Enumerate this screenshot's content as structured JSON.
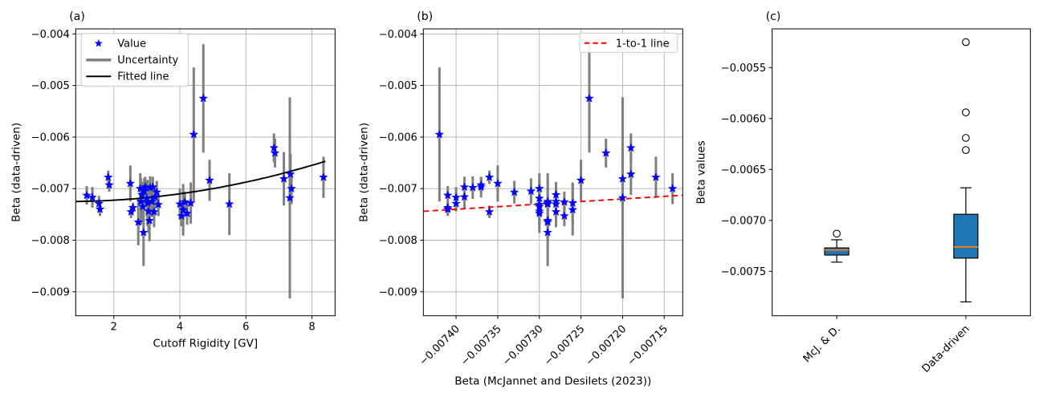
{
  "figure": {
    "background": "#ffffff",
    "panel_titles": [
      "(a)",
      "(b)",
      "(c)"
    ]
  },
  "colors": {
    "marker": "#0000ff",
    "errorbar": "#7f7f7f",
    "fit_line": "#000000",
    "one_to_one": "#ff0000",
    "grid": "#b0b0b0",
    "spine": "#000000",
    "box_fill": "#1f77b4",
    "median": "#ff7f0e",
    "text": "#000000"
  },
  "chart_data": [
    {
      "id": "a",
      "type": "scatter",
      "title": "(a)",
      "xlabel": "Cutoff Rigidity [GV]",
      "ylabel": "Beta (data-driven)",
      "xlim": [
        0.845,
        8.7
      ],
      "ylim": [
        -0.009465,
        -0.003902
      ],
      "xticks": [
        2,
        4,
        6,
        8
      ],
      "xticklabels": [
        "2",
        "4",
        "6",
        "8"
      ],
      "yticks": [
        -0.004,
        -0.005,
        -0.006,
        -0.007,
        -0.008,
        -0.009
      ],
      "yticklabels": [
        "−0.004",
        "−0.005",
        "−0.006",
        "−0.007",
        "−0.008",
        "−0.009"
      ],
      "grid": true,
      "legend": {
        "loc": "upper-left",
        "entries": [
          {
            "label": "Value",
            "swatch": "star",
            "color": "#0000ff"
          },
          {
            "label": "Uncertainty",
            "swatch": "thick-line",
            "color": "#7f7f7f"
          },
          {
            "label": "Fitted line",
            "swatch": "line",
            "color": "#000000"
          }
        ]
      },
      "fit": {
        "kind": "quadratic",
        "a": -0.0072473,
        "b": -1.3806e-05,
        "c": 1.266e-05,
        "x_start": 0.845,
        "x_end": 8.52
      },
      "points": [
        {
          "x": 1.18,
          "y": -0.00713,
          "err": 0.00018
        },
        {
          "x": 1.35,
          "y": -0.00717,
          "err": 0.0002
        },
        {
          "x": 1.55,
          "y": -0.00729,
          "err": 0.00015
        },
        {
          "x": 1.58,
          "y": -0.0074,
          "err": 0.00013
        },
        {
          "x": 1.83,
          "y": -0.00678,
          "err": 0.00013
        },
        {
          "x": 1.86,
          "y": -0.00693,
          "err": 0.00013
        },
        {
          "x": 2.5,
          "y": -0.0069,
          "err": 0.00035
        },
        {
          "x": 2.52,
          "y": -0.00745,
          "err": 0.00012
        },
        {
          "x": 2.58,
          "y": -0.00737,
          "err": 0.0001
        },
        {
          "x": 2.74,
          "y": -0.00765,
          "err": 0.00045
        },
        {
          "x": 2.8,
          "y": -0.007,
          "err": 0.0003
        },
        {
          "x": 2.82,
          "y": -0.00725,
          "err": 0.00045
        },
        {
          "x": 2.85,
          "y": -0.00712,
          "err": 0.00025
        },
        {
          "x": 2.88,
          "y": -0.00735,
          "err": 0.0003
        },
        {
          "x": 2.9,
          "y": -0.00785,
          "err": 0.00065
        },
        {
          "x": 2.92,
          "y": -0.00705,
          "err": 0.00025
        },
        {
          "x": 2.95,
          "y": -0.00697,
          "err": 0.0002
        },
        {
          "x": 3.0,
          "y": -0.00719,
          "err": 0.00035
        },
        {
          "x": 3.02,
          "y": -0.00728,
          "err": 0.00045
        },
        {
          "x": 3.05,
          "y": -0.00744,
          "err": 0.00042
        },
        {
          "x": 3.08,
          "y": -0.00762,
          "err": 0.0004
        },
        {
          "x": 3.1,
          "y": -0.00698,
          "err": 0.00022
        },
        {
          "x": 3.15,
          "y": -0.00725,
          "err": 0.0003
        },
        {
          "x": 3.18,
          "y": -0.00697,
          "err": 0.0002
        },
        {
          "x": 3.22,
          "y": -0.00745,
          "err": 0.0003
        },
        {
          "x": 3.25,
          "y": -0.00716,
          "err": 0.00022
        },
        {
          "x": 3.3,
          "y": -0.00707,
          "err": 0.00022
        },
        {
          "x": 3.35,
          "y": -0.00731,
          "err": 0.00022
        },
        {
          "x": 4.0,
          "y": -0.0073,
          "err": 0.0003
        },
        {
          "x": 4.05,
          "y": -0.00753,
          "err": 0.0002
        },
        {
          "x": 4.1,
          "y": -0.00741,
          "err": 0.0005
        },
        {
          "x": 4.15,
          "y": -0.00726,
          "err": 0.0002
        },
        {
          "x": 4.22,
          "y": -0.00748,
          "err": 0.00022
        },
        {
          "x": 4.33,
          "y": -0.00728,
          "err": 0.0004
        },
        {
          "x": 4.42,
          "y": -0.00595,
          "err": 0.0013
        },
        {
          "x": 4.71,
          "y": -0.00525,
          "err": 0.00105
        },
        {
          "x": 4.9,
          "y": -0.00684,
          "err": 0.0004
        },
        {
          "x": 5.5,
          "y": -0.0073,
          "err": 0.0006
        },
        {
          "x": 6.85,
          "y": -0.00621,
          "err": 0.00028
        },
        {
          "x": 6.88,
          "y": -0.00631,
          "err": 0.00028
        },
        {
          "x": 7.15,
          "y": -0.00681,
          "err": 0.00052
        },
        {
          "x": 7.33,
          "y": -0.00718,
          "err": 0.00195
        },
        {
          "x": 7.35,
          "y": -0.00672,
          "err": 0.0004
        },
        {
          "x": 7.38,
          "y": -0.007,
          "err": 0.0003
        },
        {
          "x": 8.35,
          "y": -0.00678,
          "err": 0.0004
        }
      ]
    },
    {
      "id": "b",
      "type": "scatter",
      "title": "(b)",
      "xlabel": "Beta (McJannet and Desilets (2023))",
      "ylabel": "Beta (data-driven)",
      "xlim": [
        -0.0074393,
        -0.0071278
      ],
      "ylim": [
        -0.009465,
        -0.003902
      ],
      "xticks": [
        -0.0074,
        -0.00735,
        -0.0073,
        -0.00725,
        -0.0072,
        -0.00715
      ],
      "xticklabels": [
        "−0.00740",
        "−0.00735",
        "−0.00730",
        "−0.00725",
        "−0.00720",
        "−0.00715"
      ],
      "xtick_rotation": 45,
      "yticks": [
        -0.004,
        -0.005,
        -0.006,
        -0.007,
        -0.008,
        -0.009
      ],
      "yticklabels": [
        "−0.004",
        "−0.005",
        "−0.006",
        "−0.007",
        "−0.008",
        "−0.009"
      ],
      "grid": true,
      "legend": {
        "loc": "upper-right",
        "entries": [
          {
            "label": "1-to-1 line",
            "swatch": "dashed-line",
            "color": "#ff0000"
          }
        ]
      },
      "one_to_one": {
        "label": "1-to-1 line"
      },
      "points": [
        {
          "x": -0.00741,
          "y": -0.00713,
          "err": 0.00018
        },
        {
          "x": -0.0074,
          "y": -0.00717,
          "err": 0.0002
        },
        {
          "x": -0.0074,
          "y": -0.00729,
          "err": 0.00015
        },
        {
          "x": -0.00741,
          "y": -0.0074,
          "err": 0.00013
        },
        {
          "x": -0.00736,
          "y": -0.00678,
          "err": 0.00013
        },
        {
          "x": -0.00737,
          "y": -0.00693,
          "err": 0.00013
        },
        {
          "x": -0.00735,
          "y": -0.0069,
          "err": 0.00035
        },
        {
          "x": -0.00736,
          "y": -0.00745,
          "err": 0.00012
        },
        {
          "x": -0.00741,
          "y": -0.00737,
          "err": 0.0001
        },
        {
          "x": -0.00729,
          "y": -0.00765,
          "err": 0.00045
        },
        {
          "x": -0.0073,
          "y": -0.007,
          "err": 0.0003
        },
        {
          "x": -0.00729,
          "y": -0.00725,
          "err": 0.00045
        },
        {
          "x": -0.00728,
          "y": -0.00712,
          "err": 0.00025
        },
        {
          "x": -0.0073,
          "y": -0.00735,
          "err": 0.0003
        },
        {
          "x": -0.00729,
          "y": -0.00785,
          "err": 0.00065
        },
        {
          "x": -0.00731,
          "y": -0.00705,
          "err": 0.00025
        },
        {
          "x": -0.00737,
          "y": -0.00697,
          "err": 0.0002
        },
        {
          "x": -0.0073,
          "y": -0.00719,
          "err": 0.00035
        },
        {
          "x": -0.00729,
          "y": -0.00728,
          "err": 0.00045
        },
        {
          "x": -0.0073,
          "y": -0.00744,
          "err": 0.00042
        },
        {
          "x": -0.00729,
          "y": -0.00762,
          "err": 0.0004
        },
        {
          "x": -0.00738,
          "y": -0.00698,
          "err": 0.00022
        },
        {
          "x": -0.00728,
          "y": -0.00725,
          "err": 0.0003
        },
        {
          "x": -0.00739,
          "y": -0.00697,
          "err": 0.0002
        },
        {
          "x": -0.00728,
          "y": -0.00745,
          "err": 0.0003
        },
        {
          "x": -0.00739,
          "y": -0.00716,
          "err": 0.00022
        },
        {
          "x": -0.00733,
          "y": -0.00707,
          "err": 0.00022
        },
        {
          "x": -0.0073,
          "y": -0.00731,
          "err": 0.00022
        },
        {
          "x": -0.00728,
          "y": -0.0073,
          "err": 0.0003
        },
        {
          "x": -0.00727,
          "y": -0.00753,
          "err": 0.0002
        },
        {
          "x": -0.00726,
          "y": -0.00741,
          "err": 0.0005
        },
        {
          "x": -0.00727,
          "y": -0.00726,
          "err": 0.0002
        },
        {
          "x": -0.0073,
          "y": -0.00748,
          "err": 0.00022
        },
        {
          "x": -0.00726,
          "y": -0.00728,
          "err": 0.0004
        },
        {
          "x": -0.00742,
          "y": -0.00595,
          "err": 0.0013
        },
        {
          "x": -0.00724,
          "y": -0.00525,
          "err": 0.00105
        },
        {
          "x": -0.00725,
          "y": -0.00684,
          "err": 0.0004
        },
        {
          "x": -0.00729,
          "y": -0.0073,
          "err": 0.0006
        },
        {
          "x": -0.00719,
          "y": -0.00621,
          "err": 0.00028
        },
        {
          "x": -0.00722,
          "y": -0.00631,
          "err": 0.00028
        },
        {
          "x": -0.0072,
          "y": -0.00681,
          "err": 0.00052
        },
        {
          "x": -0.0072,
          "y": -0.00718,
          "err": 0.00195
        },
        {
          "x": -0.00719,
          "y": -0.00672,
          "err": 0.0004
        },
        {
          "x": -0.00714,
          "y": -0.007,
          "err": 0.0003
        },
        {
          "x": -0.00716,
          "y": -0.00678,
          "err": 0.0004
        }
      ]
    },
    {
      "id": "c",
      "type": "boxplot",
      "title": "(c)",
      "xlabel": "",
      "ylabel": "Beta values",
      "xlim": [
        0,
        2
      ],
      "ylim": [
        -0.007936,
        -0.00512
      ],
      "positions": [
        0.5,
        1.5
      ],
      "categories": [
        "McJ. & D.",
        "Data-driven"
      ],
      "xtick_rotation": 45,
      "yticks": [
        -0.0055,
        -0.006,
        -0.0065,
        -0.007,
        -0.0075
      ],
      "yticklabels": [
        "−0.0055",
        "−0.0060",
        "−0.0065",
        "−0.0070",
        "−0.0075"
      ],
      "grid": false,
      "boxes": [
        {
          "label": "McJ. & D.",
          "whisker_low": -0.00741,
          "q1": -0.00734,
          "median": -0.00729,
          "q3": -0.00727,
          "whisker_high": -0.00719,
          "outliers": [
            -0.00713
          ]
        },
        {
          "label": "Data-driven",
          "whisker_low": -0.0078,
          "q1": -0.00737,
          "median": -0.00726,
          "q3": -0.00694,
          "whisker_high": -0.00668,
          "outliers": [
            -0.00631,
            -0.00619,
            -0.00594,
            -0.00525
          ]
        }
      ]
    }
  ]
}
